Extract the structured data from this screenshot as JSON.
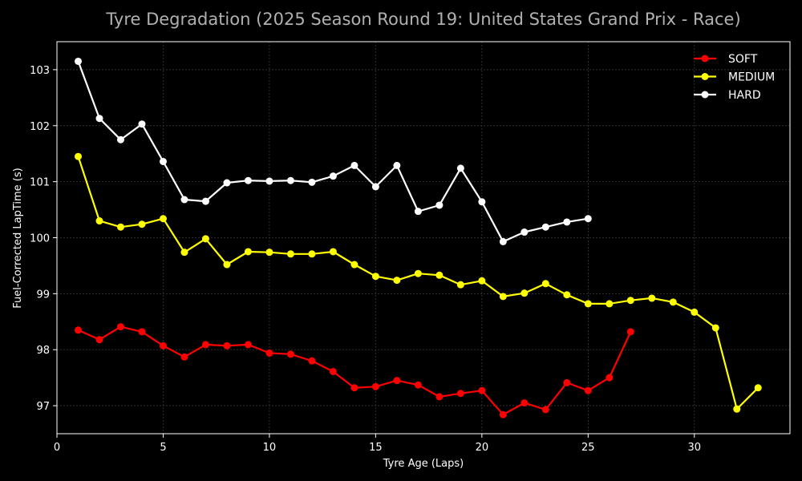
{
  "chart_data": {
    "type": "line",
    "title": "Tyre Degradation (2025 Season Round 19: United States Grand Prix - Race)",
    "xlabel": "Tyre Age (Laps)",
    "ylabel": "Fuel-Corrected LapTime (s)",
    "xlim": [
      0,
      34.5
    ],
    "ylim": [
      96.5,
      103.5
    ],
    "xticks": [
      0,
      5,
      10,
      15,
      20,
      25,
      30
    ],
    "yticks": [
      97,
      98,
      99,
      100,
      101,
      102,
      103
    ],
    "grid": true,
    "legend_position": "top-right",
    "series": [
      {
        "name": "SOFT",
        "color": "#ff0000",
        "x": [
          1,
          2,
          3,
          4,
          5,
          6,
          7,
          8,
          9,
          10,
          11,
          12,
          13,
          14,
          15,
          16,
          17,
          18,
          19,
          20,
          21,
          22,
          23,
          24,
          25,
          26,
          27
        ],
        "y": [
          98.35,
          98.18,
          98.41,
          98.32,
          98.07,
          97.87,
          98.09,
          98.07,
          98.09,
          97.94,
          97.92,
          97.8,
          97.61,
          97.32,
          97.34,
          97.45,
          97.37,
          97.16,
          97.22,
          97.27,
          96.84,
          97.05,
          96.93,
          97.41,
          97.27,
          97.5,
          98.32
        ]
      },
      {
        "name": "MEDIUM",
        "color": "#ffff00",
        "x": [
          1,
          2,
          3,
          4,
          5,
          6,
          7,
          8,
          9,
          10,
          11,
          12,
          13,
          14,
          15,
          16,
          17,
          18,
          19,
          20,
          21,
          22,
          23,
          24,
          25,
          26,
          27,
          28,
          29,
          30,
          31,
          32,
          33
        ],
        "y": [
          101.45,
          100.3,
          100.19,
          100.24,
          100.34,
          99.74,
          99.98,
          99.52,
          99.75,
          99.74,
          99.71,
          99.71,
          99.75,
          99.52,
          99.31,
          99.24,
          99.36,
          99.33,
          99.16,
          99.23,
          98.95,
          99.01,
          99.18,
          98.98,
          98.82,
          98.82,
          98.88,
          98.92,
          98.85,
          98.67,
          98.39,
          96.94,
          97.32
        ]
      },
      {
        "name": "HARD",
        "color": "#ffffff",
        "x": [
          1,
          2,
          3,
          4,
          5,
          6,
          7,
          8,
          9,
          10,
          11,
          12,
          13,
          14,
          15,
          16,
          17,
          18,
          19,
          20,
          21,
          22,
          23,
          24,
          25
        ],
        "y": [
          103.15,
          102.13,
          101.75,
          102.03,
          101.36,
          100.68,
          100.65,
          100.98,
          101.02,
          101.01,
          101.02,
          100.99,
          101.1,
          101.29,
          100.91,
          101.29,
          100.47,
          100.58,
          101.24,
          100.64,
          99.93,
          100.1,
          100.19,
          100.28,
          100.34
        ]
      }
    ]
  }
}
